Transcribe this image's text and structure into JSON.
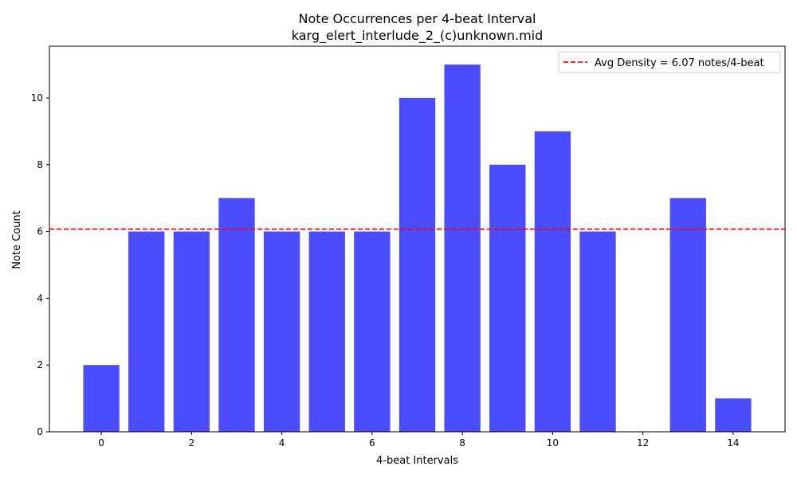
{
  "chart_data": {
    "type": "bar",
    "title": "Note Occurrences per 4-beat Interval",
    "subtitle": "karg_elert_interlude_2_(c)unknown.mid",
    "xlabel": "4-beat Intervals",
    "ylabel": "Note Count",
    "x": [
      0,
      1,
      2,
      3,
      4,
      5,
      6,
      7,
      8,
      9,
      10,
      11,
      12,
      13,
      14
    ],
    "values": [
      2,
      6,
      6,
      7,
      6,
      6,
      6,
      10,
      11,
      8,
      9,
      6,
      0,
      7,
      1
    ],
    "xlim": [
      -1.15,
      15.15
    ],
    "ylim": [
      0,
      11.55
    ],
    "xticks": [
      0,
      2,
      4,
      6,
      8,
      10,
      12,
      14
    ],
    "yticks": [
      0,
      2,
      4,
      6,
      8,
      10
    ],
    "bar_color": "#4b4bff",
    "average_line": {
      "value": 6.07,
      "color": "#ff0000",
      "style": "dashed",
      "label": "Avg Density = 6.07 notes/4-beat"
    },
    "legend": {
      "position": "top-right"
    },
    "grid": false
  }
}
